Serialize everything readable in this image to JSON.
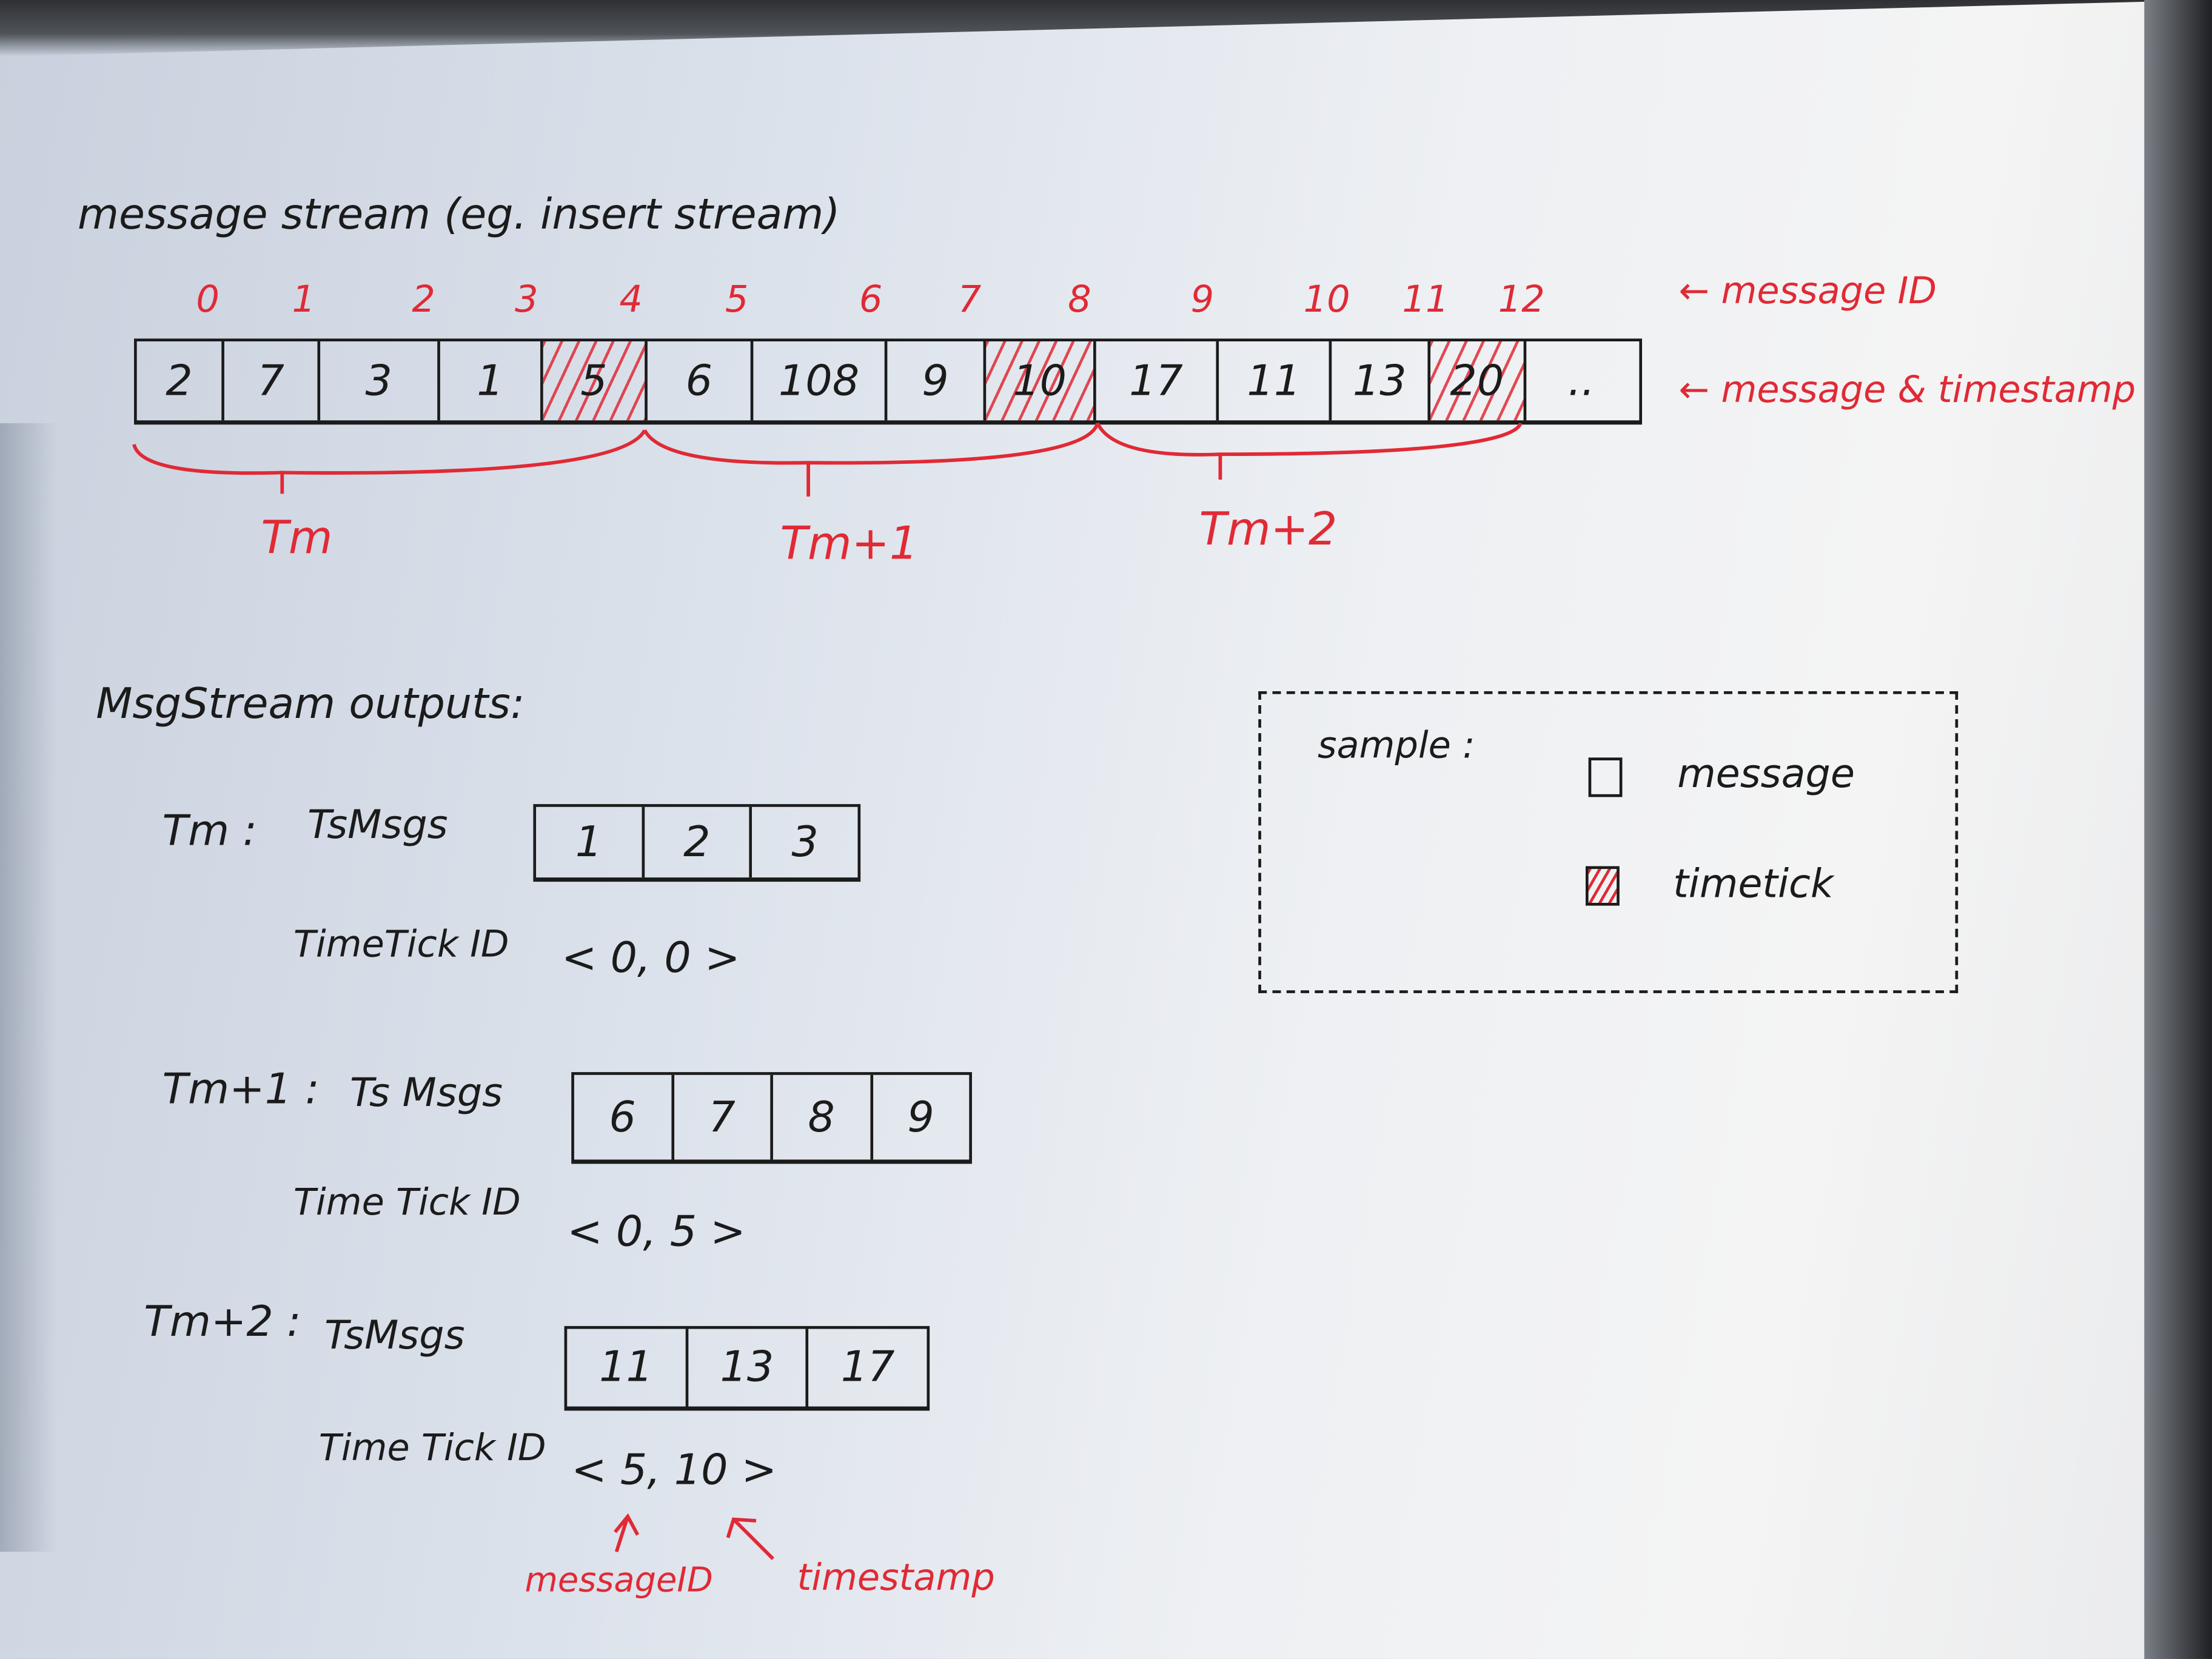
{
  "title": "message stream (eg. insert stream)",
  "stream": {
    "message_ids": [
      "0",
      "1",
      "2",
      "3",
      "4",
      "5",
      "6",
      "7",
      "8",
      "9",
      "10",
      "11",
      "12"
    ],
    "timestamps": [
      "2",
      "7",
      "3",
      "1",
      "5",
      "6",
      "108",
      "9",
      "10",
      "17",
      "11",
      "13",
      "20",
      ".."
    ],
    "timetick_flags": [
      false,
      false,
      false,
      false,
      true,
      false,
      false,
      false,
      true,
      false,
      false,
      false,
      true,
      false
    ],
    "annotation_ids": "← message ID",
    "annotation_ts": "← message & timestamp",
    "groups": [
      "Tm",
      "Tm+1",
      "Tm+2"
    ]
  },
  "outputs": {
    "heading": "MsgStream outputs:",
    "blocks": [
      {
        "name": "Tm :",
        "msgs_label": "TsMsgs",
        "msgs": [
          "1",
          "2",
          "3"
        ],
        "tick_label": "TimeTick ID",
        "tick_value": "< 0, 0 >"
      },
      {
        "name": "Tm+1 :",
        "msgs_label": "Ts Msgs",
        "msgs": [
          "6",
          "7",
          "8",
          "9"
        ],
        "tick_label": "Time Tick ID",
        "tick_value": "< 0, 5 >"
      },
      {
        "name": "Tm+2 :",
        "msgs_label": "TsMsgs",
        "msgs": [
          "11",
          "13",
          "17"
        ],
        "tick_label": "Time Tick ID",
        "tick_value": "< 5, 10 >"
      }
    ],
    "arrow_labels": {
      "id": "messageID",
      "ts": "timestamp"
    }
  },
  "legend": {
    "title": "sample :",
    "message": "message",
    "timetick": "timetick"
  },
  "colors": {
    "ink": "#1b1b1b",
    "red": "#e02a35"
  }
}
